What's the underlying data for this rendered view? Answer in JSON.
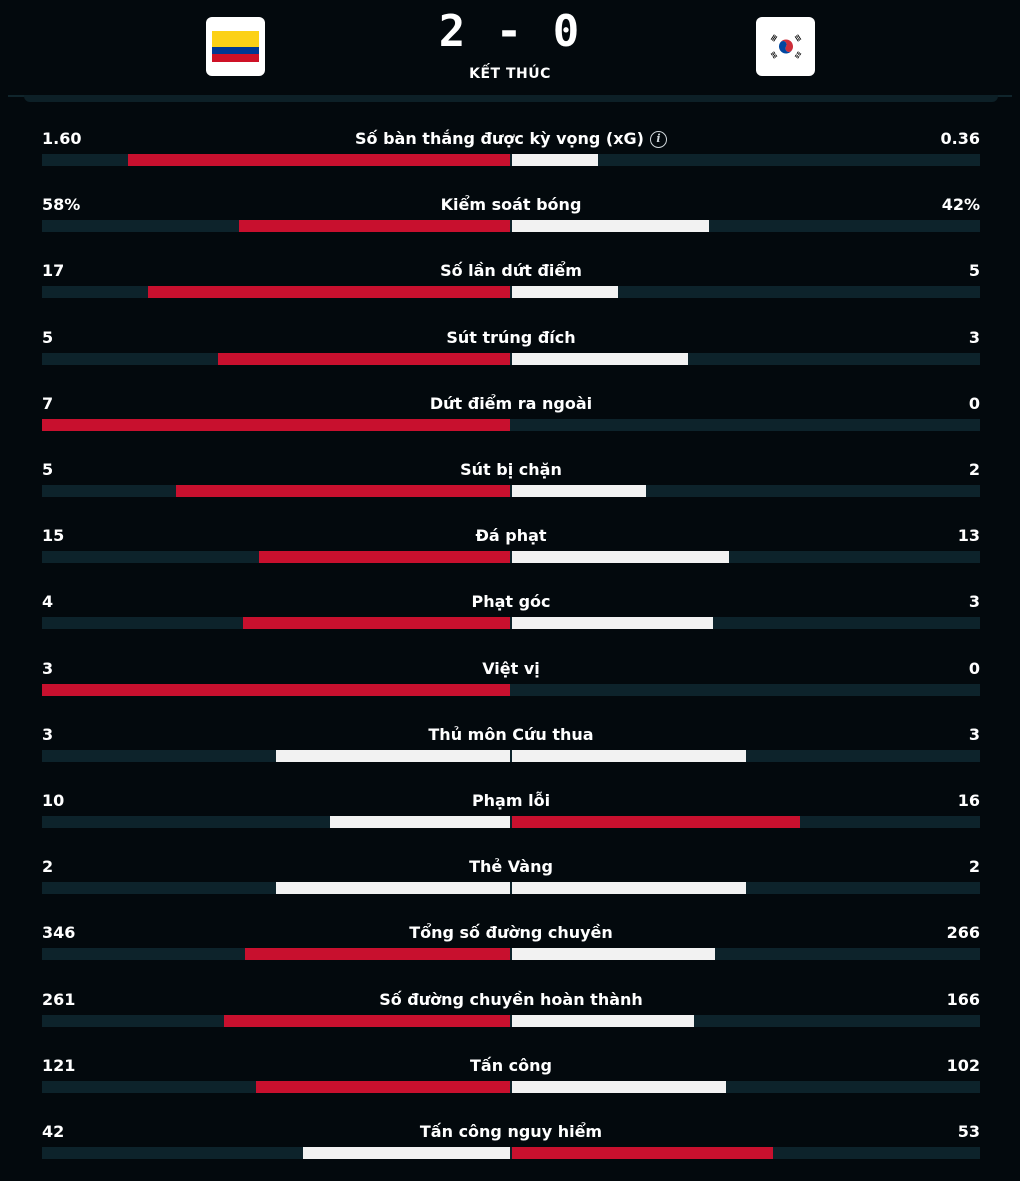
{
  "match": {
    "home_score": "2",
    "separator": "-",
    "away_score": "0",
    "status": "KẾT THÚC"
  },
  "teams": {
    "home_flag": "colombia-flag-icon",
    "away_flag": "south-korea-flag-icon"
  },
  "colors": {
    "leading": "#c8102e",
    "trailing": "#f2f2f2",
    "track": "#0d232b",
    "background": "#03090d"
  },
  "stats": [
    {
      "label": "Số bàn thắng được kỳ vọng (xG)",
      "home": "1.60",
      "away": "0.36",
      "home_num": 1.6,
      "away_num": 0.36,
      "info": true
    },
    {
      "label": "Kiểm soát bóng",
      "home": "58%",
      "away": "42%",
      "home_num": 58,
      "away_num": 42
    },
    {
      "label": "Số lần dứt điểm",
      "home": "17",
      "away": "5",
      "home_num": 17,
      "away_num": 5
    },
    {
      "label": "Sút trúng đích",
      "home": "5",
      "away": "3",
      "home_num": 5,
      "away_num": 3
    },
    {
      "label": "Dứt điểm ra ngoài",
      "home": "7",
      "away": "0",
      "home_num": 7,
      "away_num": 0
    },
    {
      "label": "Sút bị chặn",
      "home": "5",
      "away": "2",
      "home_num": 5,
      "away_num": 2
    },
    {
      "label": "Đá phạt",
      "home": "15",
      "away": "13",
      "home_num": 15,
      "away_num": 13
    },
    {
      "label": "Phạt góc",
      "home": "4",
      "away": "3",
      "home_num": 4,
      "away_num": 3
    },
    {
      "label": "Việt vị",
      "home": "3",
      "away": "0",
      "home_num": 3,
      "away_num": 0
    },
    {
      "label": "Thủ môn Cứu thua",
      "home": "3",
      "away": "3",
      "home_num": 3,
      "away_num": 3
    },
    {
      "label": "Phạm lỗi",
      "home": "10",
      "away": "16",
      "home_num": 10,
      "away_num": 16
    },
    {
      "label": "Thẻ Vàng",
      "home": "2",
      "away": "2",
      "home_num": 2,
      "away_num": 2
    },
    {
      "label": "Tổng số đường chuyền",
      "home": "346",
      "away": "266",
      "home_num": 346,
      "away_num": 266
    },
    {
      "label": "Số đường chuyền hoàn thành",
      "home": "261",
      "away": "166",
      "home_num": 261,
      "away_num": 166
    },
    {
      "label": "Tấn công",
      "home": "121",
      "away": "102",
      "home_num": 121,
      "away_num": 102
    },
    {
      "label": "Tấn công nguy hiểm",
      "home": "42",
      "away": "53",
      "home_num": 42,
      "away_num": 53
    }
  ]
}
